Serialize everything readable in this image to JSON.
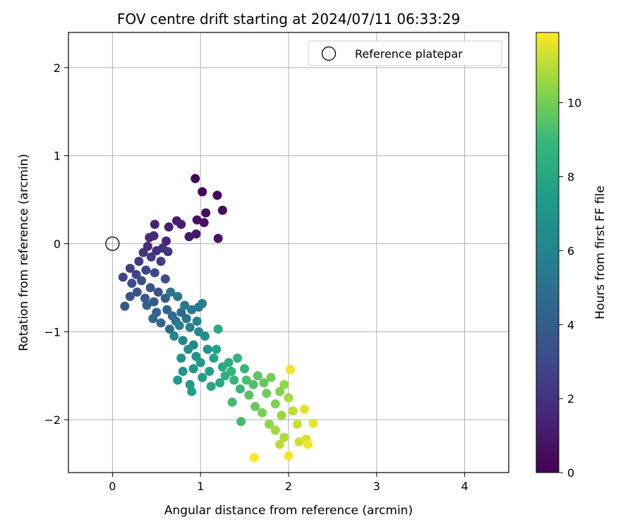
{
  "chart_data": {
    "type": "scatter",
    "title": "FOV centre drift starting at 2024/07/11 06:33:29",
    "xlabel": "Angular distance from reference (arcmin)",
    "ylabel": "Rotation from reference (arcmin)",
    "xlim": [
      -0.5,
      4.5
    ],
    "ylim": [
      -2.6,
      2.4
    ],
    "xticks": [
      0,
      1,
      2,
      3,
      4
    ],
    "xtick_labels": [
      "0",
      "1",
      "2",
      "3",
      "4"
    ],
    "yticks": [
      -2,
      -1,
      0,
      1,
      2
    ],
    "ytick_labels": [
      "−2",
      "−1",
      "0",
      "1",
      "2"
    ],
    "grid": true,
    "legend": {
      "position": "top-right",
      "entries": [
        "Reference platepar"
      ]
    },
    "reference_point": {
      "x": 0,
      "y": 0,
      "label": "Reference platepar"
    },
    "colorbar": {
      "label": "Hours from first FF file",
      "range": [
        0,
        11.9
      ],
      "ticks": [
        0,
        2,
        4,
        6,
        8,
        10
      ],
      "tick_labels": [
        "0",
        "2",
        "4",
        "6",
        "8",
        "10"
      ],
      "colormap": "viridis"
    },
    "points": [
      {
        "x": 0.94,
        "y": 0.74,
        "t": 0.1
      },
      {
        "x": 1.02,
        "y": 0.59,
        "t": 0.2
      },
      {
        "x": 1.19,
        "y": 0.55,
        "t": 0.3
      },
      {
        "x": 1.25,
        "y": 0.38,
        "t": 0.4
      },
      {
        "x": 1.06,
        "y": 0.35,
        "t": 0.5
      },
      {
        "x": 0.96,
        "y": 0.27,
        "t": 0.6
      },
      {
        "x": 1.04,
        "y": 0.24,
        "t": 0.7
      },
      {
        "x": 1.2,
        "y": 0.06,
        "t": 0.8
      },
      {
        "x": 0.95,
        "y": 0.11,
        "t": 0.9
      },
      {
        "x": 0.87,
        "y": 0.08,
        "t": 1.0
      },
      {
        "x": 0.73,
        "y": 0.26,
        "t": 1.1
      },
      {
        "x": 0.78,
        "y": 0.22,
        "t": 1.2
      },
      {
        "x": 0.64,
        "y": 0.19,
        "t": 1.3
      },
      {
        "x": 0.48,
        "y": 0.22,
        "t": 1.4
      },
      {
        "x": 0.61,
        "y": 0.03,
        "t": 1.5
      },
      {
        "x": 0.47,
        "y": 0.09,
        "t": 1.6
      },
      {
        "x": 0.42,
        "y": 0.07,
        "t": 1.7
      },
      {
        "x": 0.4,
        "y": -0.03,
        "t": 1.8
      },
      {
        "x": 0.5,
        "y": -0.08,
        "t": 1.9
      },
      {
        "x": 0.57,
        "y": -0.05,
        "t": 2.0
      },
      {
        "x": 0.35,
        "y": -0.1,
        "t": 2.1
      },
      {
        "x": 0.63,
        "y": -0.09,
        "t": 2.2
      },
      {
        "x": 0.3,
        "y": -0.2,
        "t": 2.3
      },
      {
        "x": 0.44,
        "y": -0.15,
        "t": 2.4
      },
      {
        "x": 0.55,
        "y": -0.2,
        "t": 2.5
      },
      {
        "x": 0.2,
        "y": -0.28,
        "t": 2.6
      },
      {
        "x": 0.12,
        "y": -0.38,
        "t": 2.7
      },
      {
        "x": 0.27,
        "y": -0.35,
        "t": 2.8
      },
      {
        "x": 0.38,
        "y": -0.3,
        "t": 2.9
      },
      {
        "x": 0.48,
        "y": -0.33,
        "t": 3.0
      },
      {
        "x": 0.22,
        "y": -0.45,
        "t": 3.1
      },
      {
        "x": 0.33,
        "y": -0.42,
        "t": 3.2
      },
      {
        "x": 0.6,
        "y": -0.4,
        "t": 3.3
      },
      {
        "x": 0.43,
        "y": -0.5,
        "t": 3.4
      },
      {
        "x": 0.28,
        "y": -0.55,
        "t": 3.5
      },
      {
        "x": 0.52,
        "y": -0.55,
        "t": 3.6
      },
      {
        "x": 0.2,
        "y": -0.6,
        "t": 3.7
      },
      {
        "x": 0.37,
        "y": -0.62,
        "t": 3.8
      },
      {
        "x": 0.14,
        "y": -0.71,
        "t": 3.9
      },
      {
        "x": 0.47,
        "y": -0.66,
        "t": 4.0
      },
      {
        "x": 0.6,
        "y": -0.62,
        "t": 4.1
      },
      {
        "x": 0.39,
        "y": -0.7,
        "t": 4.2
      },
      {
        "x": 0.5,
        "y": -0.78,
        "t": 4.3
      },
      {
        "x": 0.62,
        "y": -0.75,
        "t": 4.4
      },
      {
        "x": 0.46,
        "y": -0.85,
        "t": 4.5
      },
      {
        "x": 0.55,
        "y": -0.9,
        "t": 4.6
      },
      {
        "x": 0.68,
        "y": -0.82,
        "t": 4.7
      },
      {
        "x": 0.78,
        "y": -0.78,
        "t": 4.8
      },
      {
        "x": 0.65,
        "y": -0.97,
        "t": 4.9
      },
      {
        "x": 0.72,
        "y": -0.88,
        "t": 5.0
      },
      {
        "x": 0.84,
        "y": -0.85,
        "t": 5.1
      },
      {
        "x": 0.66,
        "y": -0.55,
        "t": 5.2
      },
      {
        "x": 0.74,
        "y": -0.6,
        "t": 5.3
      },
      {
        "x": 0.82,
        "y": -0.7,
        "t": 5.4
      },
      {
        "x": 0.9,
        "y": -0.75,
        "t": 5.5
      },
      {
        "x": 0.98,
        "y": -0.72,
        "t": 5.6
      },
      {
        "x": 1.02,
        "y": -0.68,
        "t": 5.7
      },
      {
        "x": 0.76,
        "y": -0.93,
        "t": 5.8
      },
      {
        "x": 0.88,
        "y": -0.95,
        "t": 5.9
      },
      {
        "x": 0.96,
        "y": -0.88,
        "t": 6.0
      },
      {
        "x": 0.7,
        "y": -1.05,
        "t": 6.1
      },
      {
        "x": 0.8,
        "y": -1.1,
        "t": 6.2
      },
      {
        "x": 0.92,
        "y": -1.15,
        "t": 6.3
      },
      {
        "x": 0.98,
        "y": -1.0,
        "t": 6.4
      },
      {
        "x": 1.05,
        "y": -1.05,
        "t": 6.5
      },
      {
        "x": 0.86,
        "y": -1.2,
        "t": 6.6
      },
      {
        "x": 0.78,
        "y": -1.3,
        "t": 6.7
      },
      {
        "x": 0.95,
        "y": -1.28,
        "t": 6.8
      },
      {
        "x": 1.08,
        "y": -1.2,
        "t": 6.9
      },
      {
        "x": 0.8,
        "y": -1.45,
        "t": 7.0
      },
      {
        "x": 0.92,
        "y": -1.42,
        "t": 7.1
      },
      {
        "x": 1.0,
        "y": -1.35,
        "t": 7.2
      },
      {
        "x": 0.74,
        "y": -1.55,
        "t": 7.3
      },
      {
        "x": 0.88,
        "y": -1.6,
        "t": 7.4
      },
      {
        "x": 1.02,
        "y": -1.52,
        "t": 7.5
      },
      {
        "x": 0.9,
        "y": -1.68,
        "t": 7.6
      },
      {
        "x": 1.1,
        "y": -1.45,
        "t": 7.7
      },
      {
        "x": 1.15,
        "y": -1.3,
        "t": 7.8
      },
      {
        "x": 1.18,
        "y": -1.2,
        "t": 7.9
      },
      {
        "x": 1.12,
        "y": -1.62,
        "t": 8.0
      },
      {
        "x": 1.22,
        "y": -1.58,
        "t": 8.1
      },
      {
        "x": 1.2,
        "y": -0.97,
        "t": 8.2
      },
      {
        "x": 1.25,
        "y": -1.4,
        "t": 8.3
      },
      {
        "x": 1.32,
        "y": -1.35,
        "t": 8.4
      },
      {
        "x": 1.28,
        "y": -1.5,
        "t": 8.5
      },
      {
        "x": 1.35,
        "y": -1.45,
        "t": 8.6
      },
      {
        "x": 1.42,
        "y": -1.3,
        "t": 8.7
      },
      {
        "x": 1.38,
        "y": -1.55,
        "t": 8.8
      },
      {
        "x": 1.45,
        "y": -1.65,
        "t": 8.9
      },
      {
        "x": 1.5,
        "y": -1.42,
        "t": 9.0
      },
      {
        "x": 1.36,
        "y": -1.8,
        "t": 9.1
      },
      {
        "x": 1.46,
        "y": -2.02,
        "t": 9.2
      },
      {
        "x": 1.52,
        "y": -1.55,
        "t": 9.3
      },
      {
        "x": 1.6,
        "y": -1.6,
        "t": 9.4
      },
      {
        "x": 1.55,
        "y": -1.72,
        "t": 9.5
      },
      {
        "x": 1.65,
        "y": -1.5,
        "t": 9.6
      },
      {
        "x": 1.72,
        "y": -1.58,
        "t": 9.7
      },
      {
        "x": 1.62,
        "y": -1.85,
        "t": 9.8
      },
      {
        "x": 1.75,
        "y": -1.7,
        "t": 9.9
      },
      {
        "x": 1.8,
        "y": -1.52,
        "t": 10.0
      },
      {
        "x": 1.7,
        "y": -1.92,
        "t": 10.1
      },
      {
        "x": 1.85,
        "y": -1.82,
        "t": 10.2
      },
      {
        "x": 1.9,
        "y": -1.68,
        "t": 10.3
      },
      {
        "x": 1.78,
        "y": -2.05,
        "t": 10.4
      },
      {
        "x": 1.95,
        "y": -1.6,
        "t": 10.5
      },
      {
        "x": 1.92,
        "y": -1.95,
        "t": 10.6
      },
      {
        "x": 1.85,
        "y": -2.12,
        "t": 10.7
      },
      {
        "x": 2.0,
        "y": -1.75,
        "t": 10.8
      },
      {
        "x": 1.95,
        "y": -2.2,
        "t": 10.9
      },
      {
        "x": 1.9,
        "y": -2.28,
        "t": 11.0
      },
      {
        "x": 2.05,
        "y": -1.9,
        "t": 11.1
      },
      {
        "x": 2.1,
        "y": -2.05,
        "t": 11.2
      },
      {
        "x": 2.12,
        "y": -2.25,
        "t": 11.3
      },
      {
        "x": 2.2,
        "y": -2.22,
        "t": 11.4
      },
      {
        "x": 2.18,
        "y": -1.88,
        "t": 11.5
      },
      {
        "x": 2.28,
        "y": -2.04,
        "t": 11.6
      },
      {
        "x": 2.02,
        "y": -1.43,
        "t": 11.7
      },
      {
        "x": 2.0,
        "y": -2.41,
        "t": 11.8
      },
      {
        "x": 1.61,
        "y": -2.43,
        "t": 11.9
      },
      {
        "x": 2.22,
        "y": -2.28,
        "t": 11.8
      }
    ]
  }
}
